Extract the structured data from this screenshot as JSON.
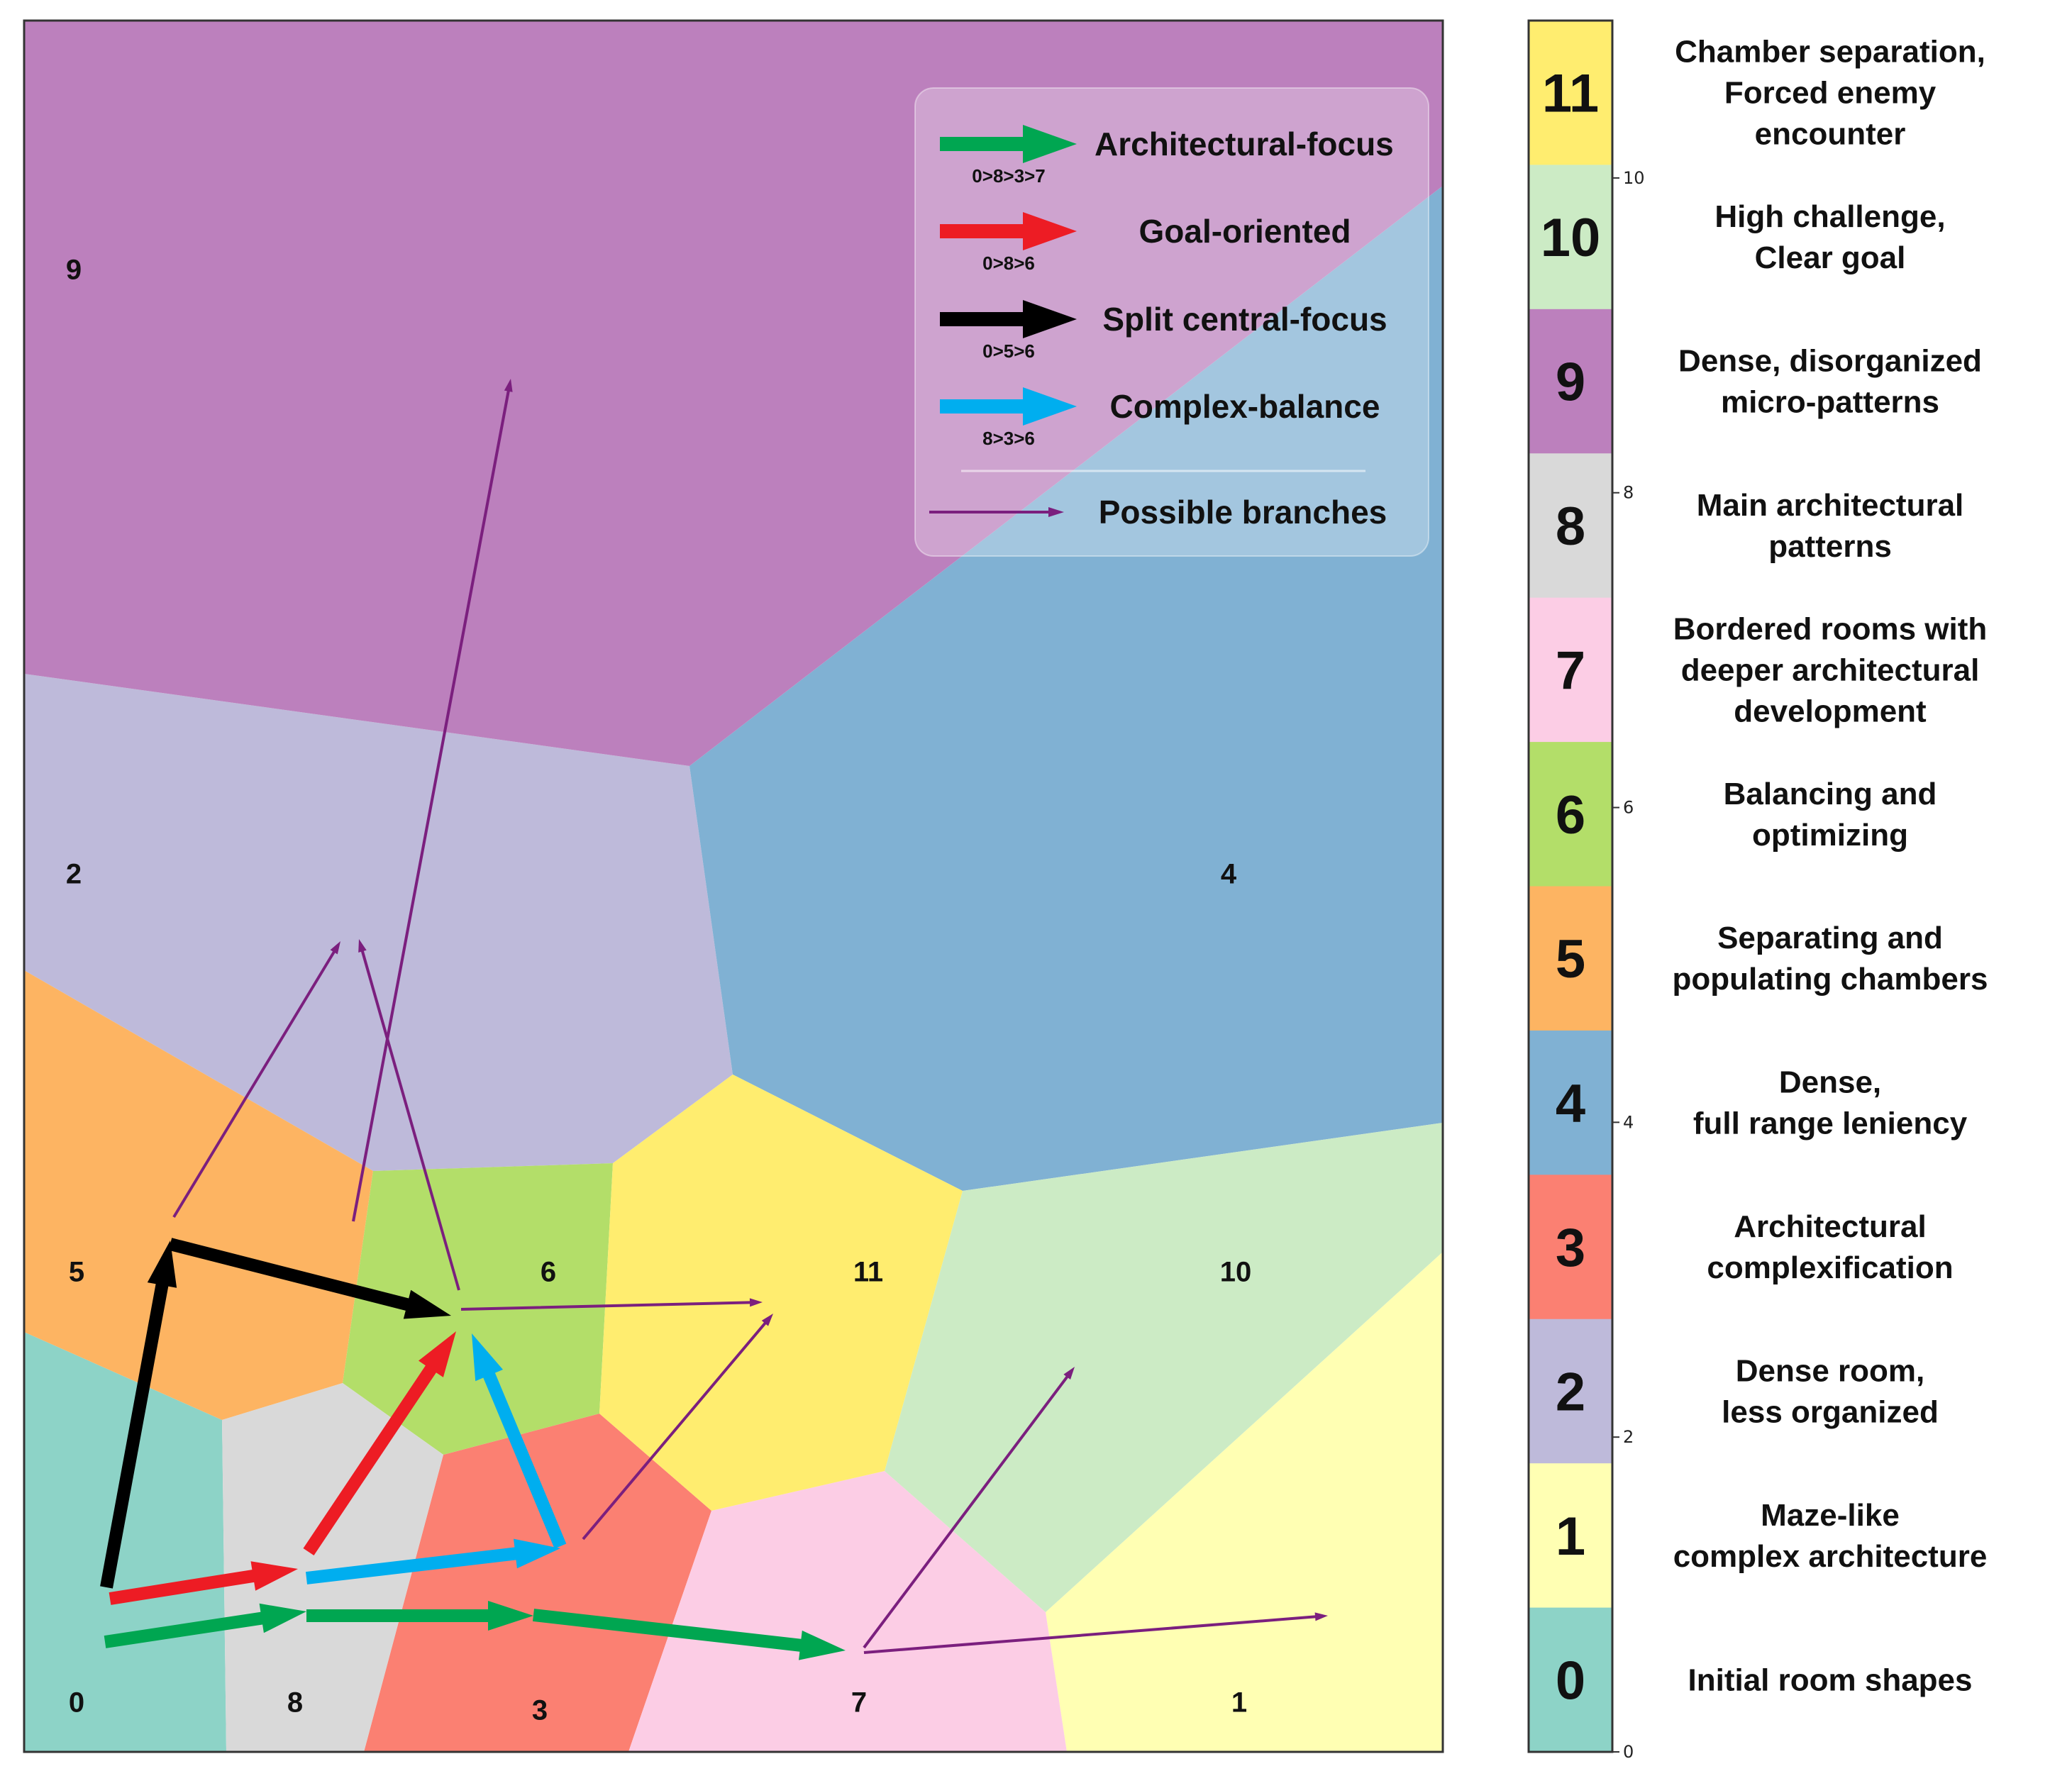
{
  "regions": [
    {
      "id": "0",
      "label": "0",
      "color": "#8dd3c7"
    },
    {
      "id": "1",
      "label": "1",
      "color": "#ffffb3"
    },
    {
      "id": "2",
      "label": "2",
      "color": "#bebada"
    },
    {
      "id": "3",
      "label": "3",
      "color": "#fb8072"
    },
    {
      "id": "4",
      "label": "4",
      "color": "#80b1d3"
    },
    {
      "id": "5",
      "label": "5",
      "color": "#fdb462"
    },
    {
      "id": "6",
      "label": "6",
      "color": "#b3de69"
    },
    {
      "id": "7",
      "label": "7",
      "color": "#fccde5"
    },
    {
      "id": "8",
      "label": "8",
      "color": "#d9d9d9"
    },
    {
      "id": "9",
      "label": "9",
      "color": "#bc80bd"
    },
    {
      "id": "10",
      "label": "10",
      "color": "#ccebc5"
    },
    {
      "id": "11",
      "label": "11",
      "color": "#ffed6f"
    }
  ],
  "legend": {
    "items": [
      {
        "name": "Architectural-focus",
        "path": "0>8>3>7",
        "color": "#00a651"
      },
      {
        "name": "Goal-oriented",
        "path": "0>8>6",
        "color": "#ed1c24"
      },
      {
        "name": "Split central-focus",
        "path": "0>5>6",
        "color": "#000000"
      },
      {
        "name": "Complex-balance",
        "path": "8>3>6",
        "color": "#00aeef"
      }
    ],
    "branches_label": "Possible branches",
    "branch_color": "#7b1f7e"
  },
  "colorbar": {
    "entries": [
      {
        "value": "11",
        "color": "#ffed6f",
        "description": [
          "Chamber separation,",
          "Forced enemy",
          "encounter"
        ]
      },
      {
        "value": "10",
        "color": "#ccebc5",
        "description": [
          "High challenge,",
          "Clear goal"
        ]
      },
      {
        "value": "9",
        "color": "#bc80bd",
        "description": [
          "Dense, disorganized",
          "micro-patterns"
        ]
      },
      {
        "value": "8",
        "color": "#d9d9d9",
        "description": [
          "Main architectural",
          "patterns"
        ]
      },
      {
        "value": "7",
        "color": "#fccde5",
        "description": [
          "Bordered rooms with",
          "deeper architectural",
          "development"
        ]
      },
      {
        "value": "6",
        "color": "#b3de69",
        "description": [
          "Balancing and",
          "optimizing"
        ]
      },
      {
        "value": "5",
        "color": "#fdb462",
        "description": [
          "Separating and",
          "populating chambers"
        ]
      },
      {
        "value": "4",
        "color": "#80b1d3",
        "description": [
          "Dense,",
          "full range leniency"
        ]
      },
      {
        "value": "3",
        "color": "#fb8072",
        "description": [
          "Architectural",
          "complexification"
        ]
      },
      {
        "value": "2",
        "color": "#bebada",
        "description": [
          "Dense room,",
          "less organized"
        ]
      },
      {
        "value": "1",
        "color": "#ffffb3",
        "description": [
          "Maze-like",
          "complex architecture"
        ]
      },
      {
        "value": "0",
        "color": "#8dd3c7",
        "description": [
          "Initial room shapes"
        ]
      }
    ],
    "ticks": [
      "0",
      "2",
      "4",
      "6",
      "8",
      "10"
    ]
  }
}
